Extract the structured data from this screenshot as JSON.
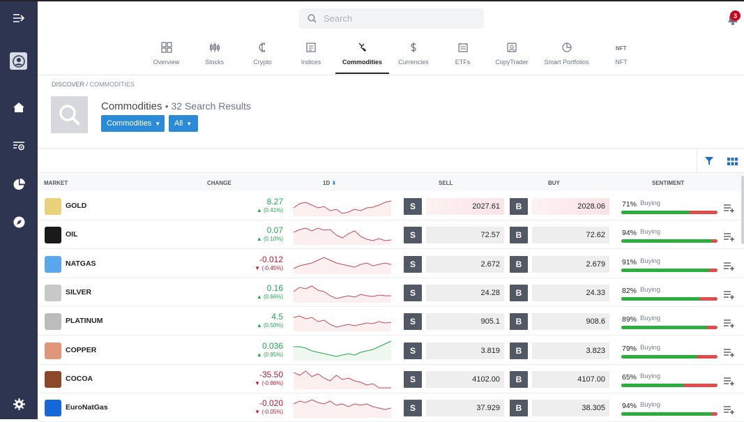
{
  "notifications": {
    "count": "3"
  },
  "search": {
    "placeholder": "Search"
  },
  "tabs": [
    {
      "label": "Overview",
      "icon": "grid-icon"
    },
    {
      "label": "Stocks",
      "icon": "candles-icon"
    },
    {
      "label": "Crypto",
      "icon": "crypto-icon"
    },
    {
      "label": "Indices",
      "icon": "indices-icon"
    },
    {
      "label": "Commodities",
      "icon": "commodities-icon",
      "active": true
    },
    {
      "label": "Currencies",
      "icon": "dollar-icon"
    },
    {
      "label": "ETFs",
      "icon": "etf-icon"
    },
    {
      "label": "CopyTrader",
      "icon": "copytrader-icon"
    },
    {
      "label": "Smart Portfolios",
      "icon": "pie-icon"
    },
    {
      "label": "NFT",
      "icon": "nft-icon"
    }
  ],
  "breadcrumb": {
    "root": "DISCOVER",
    "sep": "/",
    "current": "COMMODITIES"
  },
  "page": {
    "title": "Commodities",
    "results": "• 32 Search Results"
  },
  "filters": {
    "category": "Commodities",
    "scope": "All"
  },
  "columns": {
    "market": "MARKET",
    "change": "CHANGE",
    "period": "1D",
    "sell": "SELL",
    "buy": "BUY",
    "sentiment": "SENTIMENT"
  },
  "buttons": {
    "sell": "S",
    "buy": "B"
  },
  "rows": [
    {
      "name": "GOLD",
      "change": "8.27",
      "pct": "▲ (0.41%)",
      "dir": "up",
      "sell": "2027.61",
      "buy": "2028.06",
      "sentiment": "71%",
      "label": "Buying",
      "sent_value": 71,
      "sell_style": "r",
      "buy_style": "r",
      "icon_color": "#e9d27a",
      "spark": [
        18,
        12,
        10,
        14,
        18,
        16,
        22,
        20,
        26,
        24,
        20,
        22,
        18,
        17,
        14,
        10,
        8
      ]
    },
    {
      "name": "OIL",
      "change": "0.07",
      "pct": "▲ (0.10%)",
      "dir": "up",
      "sell": "72.57",
      "buy": "72.62",
      "sentiment": "94%",
      "label": "Buying",
      "sent_value": 94,
      "sell_style": "g",
      "buy_style": "g",
      "icon_color": "#1a1a1a",
      "spark": [
        12,
        8,
        6,
        10,
        6,
        9,
        8,
        16,
        20,
        14,
        10,
        18,
        22,
        24,
        21,
        24,
        23
      ]
    },
    {
      "name": "NATGAS",
      "change": "-0.012",
      "pct": "▼ (-0.45%)",
      "dir": "down",
      "sell": "2.672",
      "buy": "2.679",
      "sentiment": "91%",
      "label": "Buying",
      "sent_value": 91,
      "sell_style": "g",
      "buy_style": "g",
      "icon_color": "#5aa7ee",
      "spark": [
        22,
        18,
        16,
        14,
        10,
        6,
        10,
        14,
        16,
        18,
        20,
        16,
        14,
        18,
        16,
        14,
        16
      ]
    },
    {
      "name": "SILVER",
      "change": "0.16",
      "pct": "▲ (0.66%)",
      "dir": "up",
      "sell": "24.28",
      "buy": "24.33",
      "sentiment": "82%",
      "label": "Buying",
      "sent_value": 82,
      "sell_style": "g",
      "buy_style": "g",
      "icon_color": "#c8c8c8",
      "spark": [
        14,
        8,
        10,
        6,
        12,
        14,
        20,
        24,
        22,
        20,
        22,
        18,
        20,
        21,
        19,
        20,
        20
      ]
    },
    {
      "name": "PLATINUM",
      "change": "4.5",
      "pct": "▲ (0.50%)",
      "dir": "up",
      "sell": "905.1",
      "buy": "908.6",
      "sentiment": "89%",
      "label": "Buying",
      "sent_value": 89,
      "sell_style": "g",
      "buy_style": "g",
      "icon_color": "#bcbcbc",
      "spark": [
        10,
        8,
        12,
        10,
        16,
        14,
        20,
        24,
        22,
        20,
        22,
        20,
        18,
        19,
        16,
        18,
        17
      ]
    },
    {
      "name": "COPPER",
      "change": "0.036",
      "pct": "▲ (0.95%)",
      "dir": "up",
      "sell": "3.819",
      "buy": "3.823",
      "sentiment": "79%",
      "label": "Buying",
      "sent_value": 79,
      "sell_style": "g",
      "buy_style": "g",
      "icon_color": "#e0967a",
      "spark": [
        10,
        10,
        12,
        16,
        18,
        20,
        22,
        24,
        22,
        20,
        22,
        18,
        16,
        14,
        10,
        6,
        2
      ]
    },
    {
      "name": "COCOA",
      "change": "-35.50",
      "pct": "▼ (-0.86%)",
      "dir": "down",
      "sell": "4102.00",
      "buy": "4107.00",
      "sentiment": "65%",
      "label": "Buying",
      "sent_value": 65,
      "sell_style": "g",
      "buy_style": "g",
      "icon_color": "#8a4a2a",
      "spark": [
        6,
        10,
        4,
        12,
        8,
        14,
        18,
        10,
        16,
        14,
        18,
        20,
        24,
        22,
        28,
        28,
        28
      ]
    },
    {
      "name": "EuroNatGas",
      "change": "-0.020",
      "pct": "▼ (-0.05%)",
      "dir": "down",
      "sell": "37.929",
      "buy": "38.305",
      "sentiment": "94%",
      "label": "Buying",
      "sent_value": 94,
      "sell_style": "g",
      "buy_style": "g",
      "icon_color": "#1668d8",
      "spark": [
        10,
        6,
        8,
        4,
        8,
        10,
        6,
        12,
        10,
        14,
        10,
        12,
        10,
        14,
        16,
        18,
        16
      ]
    }
  ],
  "colors": {
    "sidebar": "#2e3551",
    "accent": "#2b8bd6",
    "up": "#21a84e",
    "down": "#c4172c",
    "buy_bar": "#2cae3f",
    "sell_bar": "#e14b4b",
    "button": "#535865"
  }
}
